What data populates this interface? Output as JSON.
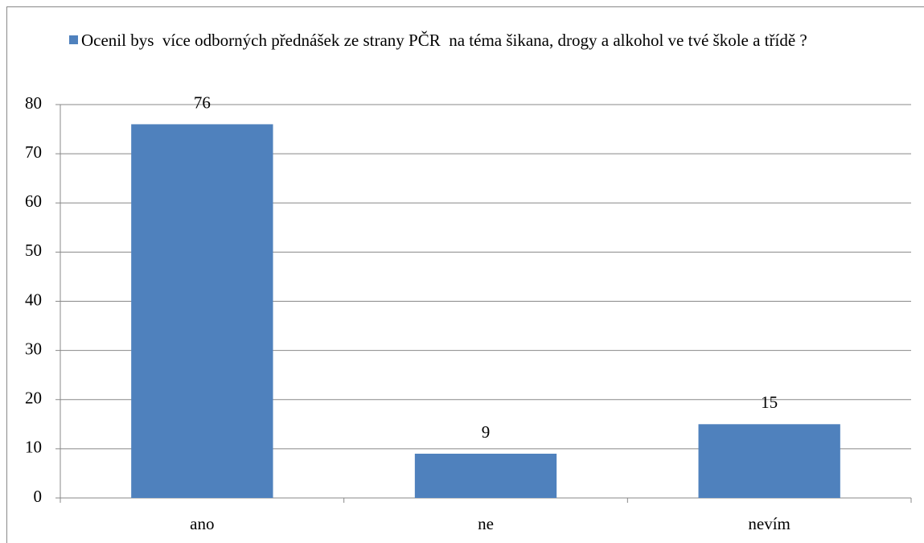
{
  "chart_data": {
    "type": "bar",
    "categories": [
      "ano",
      "ne",
      "nevím"
    ],
    "series": [
      {
        "name": "Ocenil bys  více odborných přednášek ze strany PČR  na téma šikana, drogy a alkohol ve tvé škole a třídě ?",
        "color": "#4f81bd",
        "values": [
          76,
          9,
          15
        ]
      }
    ],
    "ylim": [
      0,
      80
    ],
    "yticks": [
      0,
      10,
      20,
      30,
      40,
      50,
      60,
      70,
      80
    ],
    "grid": true,
    "legend": "top"
  }
}
